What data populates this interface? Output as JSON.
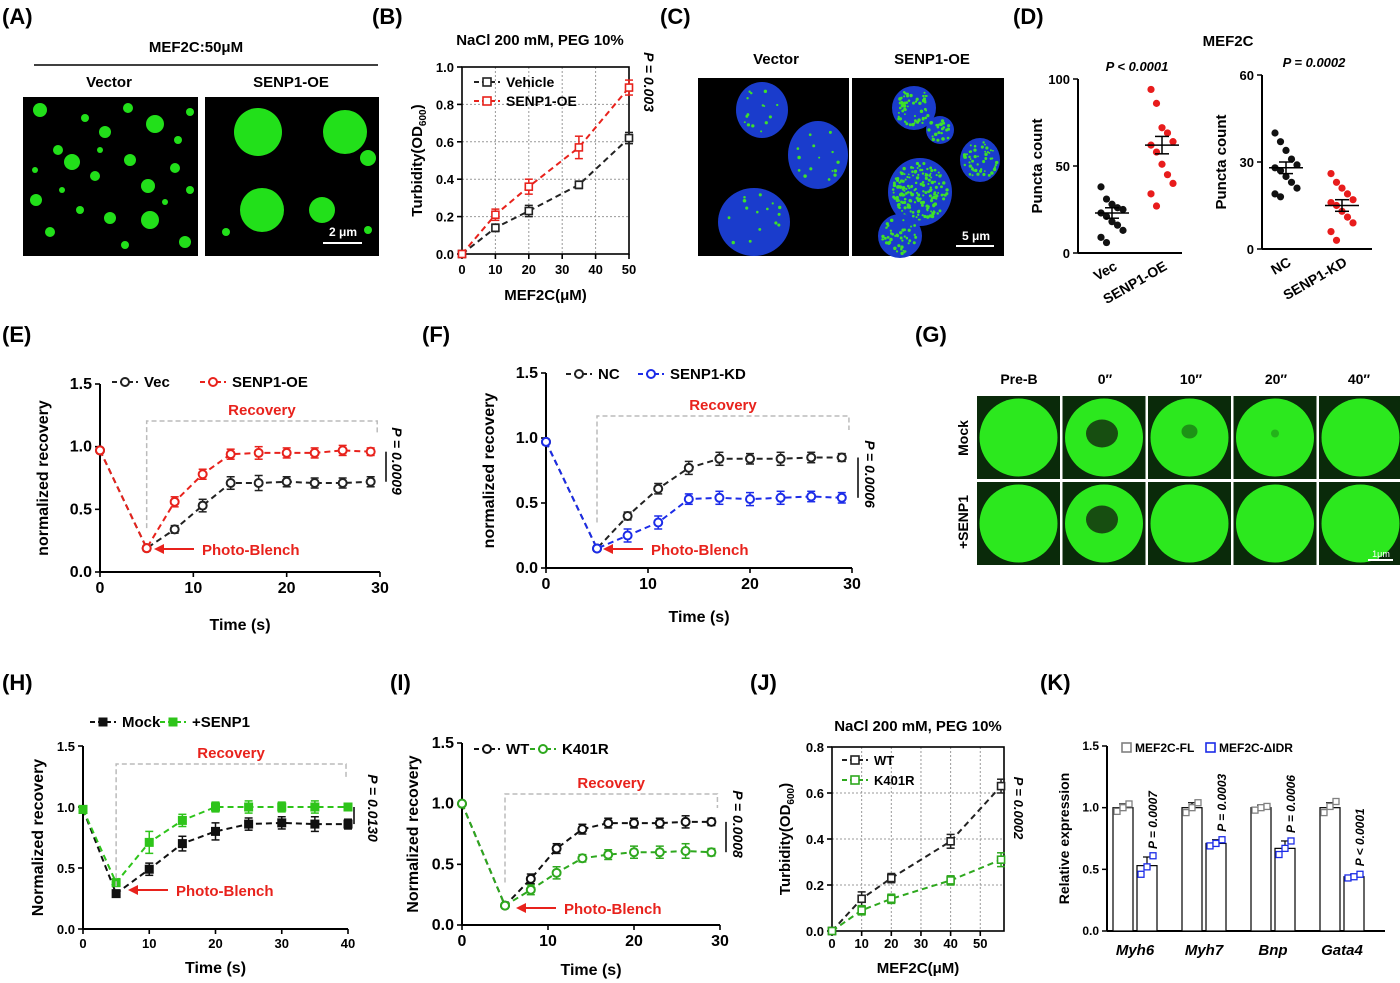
{
  "figure": {
    "panel_labels": [
      "(A)",
      "(B)",
      "(C)",
      "(D)",
      "(E)",
      "(F)",
      "(G)",
      "(H)",
      "(I)",
      "(J)",
      "(K)"
    ]
  },
  "panelA": {
    "header": "MEF2C:50μM",
    "labels": [
      "Vector",
      "SENP1-OE"
    ],
    "scale_bar": "2 μm",
    "color": "#22e01a"
  },
  "panelC": {
    "labels": [
      "Vector",
      "SENP1-OE"
    ],
    "scale_bar": "5 μm",
    "nucleus_color": "#1a3ccc",
    "puncta_color": "#3ee02a"
  },
  "panelG": {
    "columns": [
      "Pre-B",
      "0″",
      "10″",
      "20″",
      "40″"
    ],
    "rows": [
      "Mock",
      "+SENP1"
    ],
    "scale_bar": "1μm"
  },
  "chart_data": [
    {
      "id": "B",
      "type": "line",
      "title": "NaCl 200 mM, PEG 10%",
      "xlabel": "MEF2C(μM)",
      "ylabel": "Turbidity(OD600)",
      "xlim": [
        0,
        50
      ],
      "ylim": [
        0,
        1.0
      ],
      "xticks": [
        0,
        10,
        20,
        30,
        40,
        50
      ],
      "yticks": [
        0,
        0.2,
        0.4,
        0.6,
        0.8,
        1.0
      ],
      "grid": true,
      "marker": "square",
      "legend": "top-left",
      "p_value": "P = 0.003",
      "series": [
        {
          "name": "Vehicle",
          "color": "#222222",
          "x": [
            0,
            10,
            20,
            35,
            50
          ],
          "y": [
            0,
            0.14,
            0.23,
            0.37,
            0.62
          ],
          "err": [
            0.01,
            0.02,
            0.03,
            0.02,
            0.03
          ]
        },
        {
          "name": "SENP1-OE",
          "color": "#e8221c",
          "x": [
            0,
            10,
            20,
            35,
            50
          ],
          "y": [
            0,
            0.21,
            0.36,
            0.57,
            0.89
          ],
          "err": [
            0.01,
            0.03,
            0.04,
            0.06,
            0.04
          ]
        }
      ]
    },
    {
      "id": "D1",
      "type": "scatter",
      "title": "MEF2C",
      "ylabel": "Puncta count",
      "categories": [
        "Vec",
        "SENP1-OE"
      ],
      "ylim": [
        0,
        100
      ],
      "yticks": [
        0,
        50,
        100
      ],
      "p_value": "P < 0.0001",
      "groups": [
        {
          "name": "Vec",
          "color": "#111111",
          "mean": 23,
          "sem": 3,
          "values": [
            38,
            31,
            28,
            26,
            25,
            23,
            21,
            18,
            16,
            13,
            9,
            6
          ]
        },
        {
          "name": "SENP1-OE",
          "color": "#e81c1c",
          "mean": 62,
          "sem": 5,
          "values": [
            94,
            86,
            72,
            69,
            64,
            62,
            58,
            51,
            45,
            40,
            34,
            27
          ]
        }
      ]
    },
    {
      "id": "D2",
      "type": "scatter",
      "ylabel": "Puncta count",
      "categories": [
        "NC",
        "SENP1-KD"
      ],
      "ylim": [
        0,
        60
      ],
      "yticks": [
        0,
        30,
        60
      ],
      "p_value": "P = 0.0002",
      "groups": [
        {
          "name": "NC",
          "color": "#111111",
          "mean": 28,
          "sem": 2,
          "values": [
            40,
            37,
            34,
            31,
            29,
            28,
            27,
            25,
            23,
            21,
            19,
            18
          ]
        },
        {
          "name": "SENP1-KD",
          "color": "#e81c1c",
          "mean": 15,
          "sem": 2,
          "values": [
            26,
            23,
            21,
            19,
            17,
            16,
            15,
            13,
            11,
            9,
            6,
            3
          ]
        }
      ]
    },
    {
      "id": "E",
      "type": "line",
      "xlabel": "Time (s)",
      "ylabel": "normalized recovery",
      "xlim": [
        0,
        30
      ],
      "ylim": [
        0,
        1.5
      ],
      "xticks": [
        0,
        10,
        20,
        30
      ],
      "yticks": [
        0.0,
        0.5,
        1.0,
        1.5
      ],
      "marker": "circle",
      "legend": "top",
      "recovery_label": "Recovery",
      "bleach_label": "Photo-Blench",
      "p_value": "P = 0.0009",
      "series": [
        {
          "name": "Vec",
          "color": "#222222",
          "x": [
            0,
            5,
            8,
            11,
            14,
            17,
            20,
            23,
            26,
            29
          ],
          "y": [
            0.97,
            0.19,
            0.34,
            0.53,
            0.71,
            0.71,
            0.72,
            0.71,
            0.71,
            0.72
          ],
          "err": [
            0.02,
            0.02,
            0.03,
            0.05,
            0.05,
            0.06,
            0.04,
            0.04,
            0.04,
            0.04
          ]
        },
        {
          "name": "SENP1-OE",
          "color": "#e8221c",
          "x": [
            0,
            5,
            8,
            11,
            14,
            17,
            20,
            23,
            26,
            29
          ],
          "y": [
            0.97,
            0.19,
            0.56,
            0.78,
            0.94,
            0.95,
            0.95,
            0.95,
            0.97,
            0.96
          ],
          "err": [
            0.02,
            0.02,
            0.04,
            0.04,
            0.04,
            0.05,
            0.04,
            0.04,
            0.04,
            0.03
          ]
        }
      ]
    },
    {
      "id": "F",
      "type": "line",
      "xlabel": "Time (s)",
      "ylabel": "normalized recovery",
      "xlim": [
        0,
        30
      ],
      "ylim": [
        0,
        1.5
      ],
      "xticks": [
        0,
        10,
        20,
        30
      ],
      "yticks": [
        0.0,
        0.5,
        1.0,
        1.5
      ],
      "marker": "circle",
      "legend": "top",
      "recovery_label": "Recovery",
      "bleach_label": "Photo-Blench",
      "p_value": "P = 0.0006",
      "series": [
        {
          "name": "NC",
          "color": "#222222",
          "x": [
            0,
            5,
            8,
            11,
            14,
            17,
            20,
            23,
            26,
            29
          ],
          "y": [
            0.97,
            0.15,
            0.4,
            0.61,
            0.77,
            0.84,
            0.84,
            0.84,
            0.85,
            0.85
          ],
          "err": [
            0.02,
            0.02,
            0.03,
            0.04,
            0.05,
            0.05,
            0.04,
            0.05,
            0.04,
            0.03
          ]
        },
        {
          "name": "SENP1-KD",
          "color": "#1c2ce8",
          "x": [
            0,
            5,
            8,
            11,
            14,
            17,
            20,
            23,
            26,
            29
          ],
          "y": [
            0.97,
            0.15,
            0.25,
            0.35,
            0.53,
            0.54,
            0.53,
            0.54,
            0.55,
            0.54
          ],
          "err": [
            0.02,
            0.02,
            0.05,
            0.05,
            0.04,
            0.05,
            0.05,
            0.05,
            0.04,
            0.04
          ]
        }
      ]
    },
    {
      "id": "H",
      "type": "line",
      "xlabel": "Time (s)",
      "ylabel": "Normalized recovery",
      "xlim": [
        0,
        40
      ],
      "ylim": [
        0,
        1.5
      ],
      "xticks": [
        0,
        10,
        20,
        30,
        40
      ],
      "yticks": [
        0.0,
        0.5,
        1.0,
        1.5
      ],
      "marker": "filled-square",
      "legend": "top-left",
      "recovery_label": "Recovery",
      "bleach_label": "Photo-Blench",
      "p_value": "P = 0.0130",
      "series": [
        {
          "name": "Mock",
          "color": "#111111",
          "x": [
            0,
            5,
            10,
            15,
            20,
            25,
            30,
            35,
            40
          ],
          "y": [
            0.98,
            0.29,
            0.49,
            0.7,
            0.8,
            0.86,
            0.87,
            0.86,
            0.86
          ],
          "err": [
            0.02,
            0.02,
            0.05,
            0.06,
            0.07,
            0.05,
            0.05,
            0.06,
            0.04
          ]
        },
        {
          "name": "+SENP1",
          "color": "#2ec41a",
          "x": [
            0,
            5,
            10,
            15,
            20,
            25,
            30,
            35,
            40
          ],
          "y": [
            0.98,
            0.38,
            0.71,
            0.89,
            1.0,
            1.0,
            1.0,
            1.0,
            1.0
          ],
          "err": [
            0.02,
            0.03,
            0.09,
            0.05,
            0.04,
            0.05,
            0.04,
            0.05,
            0.03
          ]
        }
      ]
    },
    {
      "id": "I",
      "type": "line",
      "xlabel": "Time (s)",
      "ylabel": "Normalized recovery",
      "xlim": [
        0,
        30
      ],
      "ylim": [
        0,
        1.5
      ],
      "xticks": [
        0,
        10,
        20,
        30
      ],
      "yticks": [
        0.0,
        0.5,
        1.0,
        1.5
      ],
      "marker": "circle",
      "legend": "top-left",
      "recovery_label": "Recovery",
      "bleach_label": "Photo-Blench",
      "p_value": "P = 0.0008",
      "series": [
        {
          "name": "WT",
          "color": "#111111",
          "x": [
            0,
            5,
            8,
            11,
            14,
            17,
            20,
            23,
            26,
            29
          ],
          "y": [
            1.0,
            0.16,
            0.38,
            0.63,
            0.79,
            0.84,
            0.84,
            0.84,
            0.85,
            0.85
          ],
          "err": [
            0.01,
            0.02,
            0.04,
            0.04,
            0.04,
            0.04,
            0.04,
            0.04,
            0.05,
            0.03
          ]
        },
        {
          "name": "K401R",
          "color": "#2ea81e",
          "x": [
            0,
            5,
            8,
            11,
            14,
            17,
            20,
            23,
            26,
            29
          ],
          "y": [
            1.0,
            0.16,
            0.29,
            0.43,
            0.55,
            0.58,
            0.6,
            0.6,
            0.61,
            0.6
          ],
          "err": [
            0.01,
            0.02,
            0.04,
            0.05,
            0.03,
            0.04,
            0.05,
            0.05,
            0.06,
            0.03
          ]
        }
      ]
    },
    {
      "id": "J",
      "type": "line",
      "title": "NaCl 200 mM, PEG 10%",
      "xlabel": "MEF2C(μM)",
      "ylabel": "Turbidity(OD600)",
      "xlim": [
        0,
        58
      ],
      "ylim": [
        0,
        0.8
      ],
      "xticks": [
        0,
        10,
        20,
        30,
        40,
        50
      ],
      "yticks": [
        0,
        0.2,
        0.4,
        0.6,
        0.8
      ],
      "grid": true,
      "marker": "square",
      "legend": "top-left",
      "p_value": "P = 0.0002",
      "series": [
        {
          "name": "WT",
          "color": "#222222",
          "x": [
            0,
            10,
            20,
            40,
            57
          ],
          "y": [
            0,
            0.14,
            0.23,
            0.39,
            0.63
          ],
          "err": [
            0.01,
            0.03,
            0.02,
            0.03,
            0.03
          ]
        },
        {
          "name": "K401R",
          "color": "#2ea81e",
          "x": [
            0,
            10,
            20,
            40,
            57
          ],
          "y": [
            0,
            0.09,
            0.14,
            0.22,
            0.31
          ],
          "err": [
            0.01,
            0.02,
            0.02,
            0.02,
            0.03
          ]
        }
      ]
    },
    {
      "id": "K",
      "type": "bar",
      "ylabel": "Relative expression",
      "categories": [
        "Myh6",
        "Myh7",
        "Bnp",
        "Gata4"
      ],
      "ylim": [
        0,
        1.5
      ],
      "yticks": [
        0.0,
        0.5,
        1.0,
        1.5
      ],
      "legend": "top",
      "series": [
        {
          "name": "MEF2C-FL",
          "color": "#808080",
          "values": [
            1.0,
            1.0,
            1.0,
            1.0
          ],
          "err": [
            0.03,
            0.04,
            0.02,
            0.04
          ],
          "points": [
            [
              0.97,
              1.0,
              1.03
            ],
            [
              0.96,
              1.0,
              1.04
            ],
            [
              0.98,
              1.0,
              1.01
            ],
            [
              0.96,
              1.01,
              1.05
            ]
          ]
        },
        {
          "name": "MEF2C-ΔIDR",
          "color": "#1c2ce8",
          "values": [
            0.53,
            0.71,
            0.67,
            0.44
          ],
          "err": [
            0.07,
            0.03,
            0.06,
            0.02
          ],
          "points": [
            [
              0.46,
              0.52,
              0.61
            ],
            [
              0.69,
              0.71,
              0.74
            ],
            [
              0.62,
              0.67,
              0.73
            ],
            [
              0.43,
              0.44,
              0.46
            ]
          ]
        }
      ],
      "p_values": [
        "P = 0.0007",
        "P = 0.0003",
        "P = 0.0006",
        "P < 0.0001"
      ]
    }
  ]
}
